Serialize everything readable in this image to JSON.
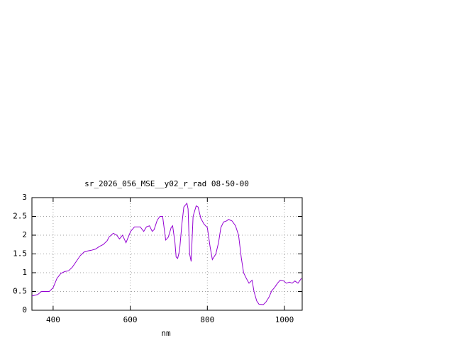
{
  "chart_data": {
    "type": "line",
    "title": "sr_2026_056_MSE__y02_r_rad 08-50-00",
    "x_label": "nm",
    "x": [
      345,
      360,
      370,
      380,
      390,
      400,
      410,
      420,
      430,
      440,
      450,
      460,
      470,
      480,
      490,
      500,
      510,
      520,
      530,
      540,
      545,
      556,
      565,
      572,
      580,
      589,
      601,
      611,
      626,
      635,
      642,
      650,
      657,
      662,
      670,
      677,
      684,
      692,
      699,
      706,
      710,
      716,
      719,
      723,
      728,
      734,
      739,
      747,
      750,
      754,
      758,
      763,
      771,
      776,
      783,
      791,
      800,
      807,
      813,
      822,
      829,
      835,
      842,
      850,
      855,
      864,
      873,
      881,
      888,
      894,
      901,
      908,
      916,
      921,
      928,
      934,
      945,
      952,
      960,
      967,
      974,
      982,
      989,
      998,
      1005,
      1013,
      1020,
      1027,
      1035,
      1044
    ],
    "series": [
      {
        "color": "#9400d3",
        "values": [
          0.38,
          0.42,
          0.5,
          0.5,
          0.5,
          0.6,
          0.85,
          0.98,
          1.03,
          1.05,
          1.15,
          1.3,
          1.45,
          1.55,
          1.58,
          1.6,
          1.63,
          1.7,
          1.75,
          1.85,
          1.95,
          2.05,
          2.0,
          1.9,
          2.0,
          1.8,
          2.1,
          2.22,
          2.22,
          2.1,
          2.22,
          2.25,
          2.1,
          2.15,
          2.4,
          2.5,
          2.5,
          1.87,
          1.95,
          2.2,
          2.25,
          1.8,
          1.42,
          1.38,
          1.6,
          2.3,
          2.75,
          2.85,
          2.7,
          1.5,
          1.3,
          2.5,
          2.78,
          2.75,
          2.45,
          2.3,
          2.2,
          1.7,
          1.35,
          1.5,
          1.8,
          2.2,
          2.35,
          2.38,
          2.42,
          2.38,
          2.25,
          2.0,
          1.4,
          1.0,
          0.85,
          0.72,
          0.8,
          0.5,
          0.25,
          0.16,
          0.15,
          0.22,
          0.35,
          0.52,
          0.6,
          0.72,
          0.8,
          0.78,
          0.72,
          0.75,
          0.72,
          0.78,
          0.72,
          0.85
        ]
      }
    ],
    "xlim": [
      345,
      1046
    ],
    "ylim": [
      0,
      3
    ],
    "xticks": [
      400,
      600,
      800,
      1000
    ],
    "yticks": [
      0,
      0.5,
      1,
      1.5,
      2,
      2.5,
      3
    ],
    "grid": true
  }
}
